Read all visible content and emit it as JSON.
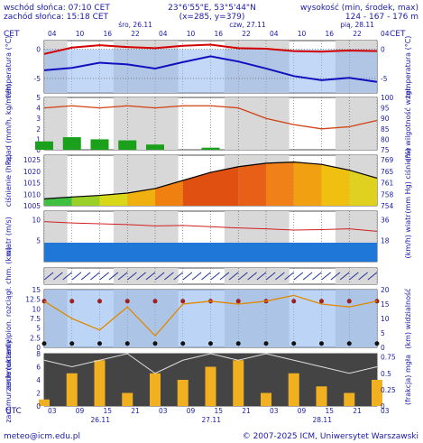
{
  "header": {
    "sunrise": "wschód słońca: 07:10 CET",
    "sunset": "zachód słońca: 15:18 CET",
    "coords": "23°6'55\"E, 53°5'44\"N",
    "grid": "(x=285, y=379)",
    "height_label": "wysokość (min, środek, max)",
    "height_values": "124 - 167 - 176 m",
    "tz_left": "CET",
    "tz_right": "CET",
    "tz_bottom": "UTC"
  },
  "time_axis": {
    "top_hours": [
      "04",
      "10",
      "16",
      "22",
      "04",
      "10",
      "16",
      "22",
      "04",
      "10",
      "16",
      "22",
      "04"
    ],
    "top_days": [
      "śro, 26.11",
      "czw, 27.11",
      "pią, 28.11"
    ],
    "bottom_hours": [
      "03",
      "09",
      "15",
      "21",
      "03",
      "09",
      "15",
      "21",
      "03",
      "09",
      "15",
      "21",
      "03"
    ],
    "bottom_days": [
      "26.11",
      "27.11",
      "28.11"
    ]
  },
  "footer": {
    "left": "meteo@icm.edu.pl",
    "right": "© 2007-2025 ICM, Uniwersytet Warszawski"
  },
  "chart_data": [
    {
      "type": "line",
      "panel": "temperature",
      "ylabel_left": "temperatura (°C)",
      "ylabel_right": "temperatura (°C)",
      "yticks": [
        0,
        -5
      ],
      "ylim": [
        -7.5,
        1.5
      ],
      "x": [
        0,
        6,
        12,
        18,
        24,
        30,
        36,
        42,
        48,
        54,
        60,
        66,
        72
      ],
      "series": [
        {
          "role": "temperature",
          "color": "#d40000",
          "values": [
            -0.8,
            0.3,
            0.7,
            0.4,
            0.2,
            0.6,
            0.8,
            0.2,
            0.1,
            -0.3,
            -0.4,
            -0.2,
            -0.3
          ]
        },
        {
          "role": "dew point",
          "color": "#1010c0",
          "values": [
            -3.6,
            -3.2,
            -2.3,
            -2.6,
            -3.3,
            -2.2,
            -1.2,
            -2.1,
            -3.3,
            -4.6,
            -5.3,
            -4.9,
            -5.6
          ]
        }
      ]
    },
    {
      "type": "bar",
      "panel": "precipitation_humidity",
      "ylabel_left": "opad (mm/h, kg/m²/h)",
      "ylabel_right": "(%) wilgotność wzgl.",
      "yticks_left": [
        0,
        1,
        2,
        3,
        4,
        5
      ],
      "yticks_right": [
        75,
        80,
        85,
        90,
        95,
        100
      ],
      "x": [
        0,
        6,
        12,
        18,
        24,
        30,
        36,
        42,
        48,
        54,
        60,
        66,
        72
      ],
      "precipitation": [
        0.8,
        1.2,
        1.0,
        0.9,
        0.5,
        0.0,
        0.2,
        0.0,
        0.0,
        0.0,
        0.0,
        0.0,
        0.0
      ],
      "humidity": [
        95,
        96,
        95,
        96,
        95,
        96,
        96,
        95,
        90,
        87,
        85,
        86,
        89
      ]
    },
    {
      "type": "area",
      "panel": "pressure",
      "ylabel_left": "ciśnienie (hPa)",
      "ylabel_right": "(mm Hg) ciśnienie",
      "yticks_left": [
        1005,
        1010,
        1015,
        1020,
        1025
      ],
      "yticks_right": [
        754,
        758,
        761,
        765,
        769
      ],
      "x": [
        0,
        6,
        12,
        18,
        24,
        30,
        36,
        42,
        48,
        54,
        60,
        66,
        72
      ],
      "values": [
        1008,
        1008.8,
        1009.5,
        1010.5,
        1012.5,
        1016,
        1019.5,
        1022,
        1023.5,
        1024,
        1023,
        1020.5,
        1017
      ]
    },
    {
      "type": "line",
      "panel": "wind",
      "ylabel_left": "wiatr (m/s)",
      "ylabel_right": "(km/h) wiatr",
      "yticks_left": [
        5,
        10
      ],
      "yticks_right": [
        18,
        36
      ],
      "x": [
        0,
        6,
        12,
        18,
        24,
        30,
        36,
        42,
        48,
        54,
        60,
        66,
        72
      ],
      "gusts": [
        9.5,
        9.2,
        9.0,
        8.8,
        8.5,
        8.6,
        8.3,
        8.0,
        7.8,
        7.5,
        7.6,
        7.8,
        7.2
      ],
      "speed": [
        4.5,
        4.3,
        4.0,
        3.8,
        3.6,
        3.5,
        3.6,
        3.4,
        3.3,
        3.2,
        3.4,
        3.5,
        3.3
      ]
    },
    {
      "type": "scatter",
      "panel": "clouds_visibility",
      "ylabel_left": "zachmurzenie pion. rozciągł. chm. (km)",
      "ylabel_right": "(km) widzialność",
      "yticks_left": [
        0,
        2.5,
        5.0,
        7.5,
        10.0,
        12.5,
        15.0
      ],
      "yticks_right": [
        0,
        5,
        10,
        15,
        20
      ],
      "x": [
        0,
        6,
        12,
        18,
        24,
        30,
        36,
        42,
        48,
        54,
        60,
        66,
        72
      ],
      "visibility": [
        16,
        10,
        6,
        14,
        4,
        15,
        16,
        15,
        16,
        18,
        15,
        14,
        16
      ]
    },
    {
      "type": "bar",
      "panel": "cloud_cover_fog",
      "ylabel_left": "zachmurzenie (oktanty)",
      "ylabel_right": "(frakcja) mgła",
      "yticks_left": [
        0,
        2,
        4,
        6,
        8
      ],
      "yticks_right": [
        0,
        0.25,
        0.5,
        0.75
      ],
      "x": [
        0,
        6,
        12,
        18,
        24,
        30,
        36,
        42,
        48,
        54,
        60,
        66,
        72
      ],
      "cloud_cover": [
        7,
        6,
        7,
        8,
        5,
        7,
        8,
        7,
        8,
        7,
        6,
        5,
        6
      ],
      "fog": [
        0.1,
        0.5,
        0.7,
        0.2,
        0.5,
        0.4,
        0.6,
        0.7,
        0.2,
        0.5,
        0.3,
        0.2,
        0.4
      ]
    }
  ]
}
